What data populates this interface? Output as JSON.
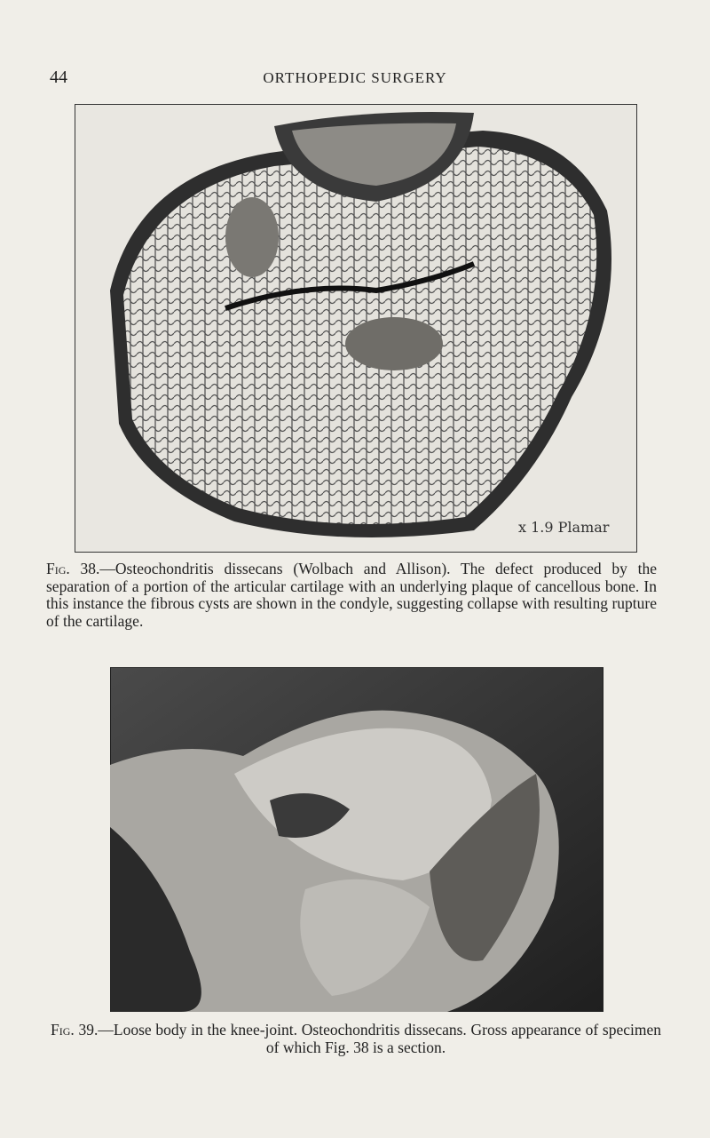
{
  "header": {
    "page_number": "44",
    "running_title": "ORTHOPEDIC SURGERY"
  },
  "figures": [
    {
      "label": "Fig. 38.",
      "caption": "—Osteochondritis dissecans (Wolbach and Allison). The defect produced by the separation of a portion of the articular cartilage with an underlying plaque of cancellous bone. In this instance the fibrous cysts are shown in the condyle, suggesting collapse with resulting rupture of the cartilage."
    },
    {
      "label": "Fig. 39.",
      "caption": "—Loose body in the knee-joint. Osteochondritis dissecans. Gross appearance of specimen of which Fig. 38 is a section."
    }
  ]
}
